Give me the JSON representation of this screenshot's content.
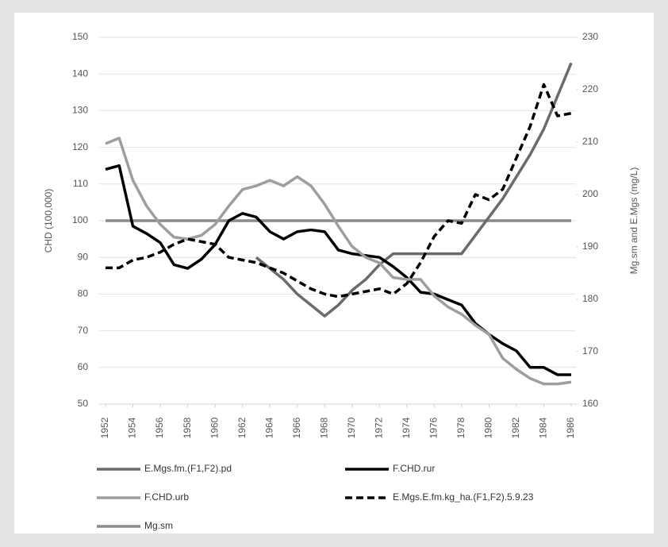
{
  "chart_data": {
    "type": "line",
    "y_label": "CHD (100,000)",
    "y2_label": "Mg.sm and E.Mgs (mg/L)",
    "x": [
      1952,
      1953,
      1954,
      1955,
      1956,
      1957,
      1958,
      1959,
      1960,
      1961,
      1962,
      1963,
      1964,
      1965,
      1966,
      1967,
      1968,
      1969,
      1970,
      1971,
      1972,
      1973,
      1974,
      1975,
      1976,
      1977,
      1978,
      1979,
      1980,
      1981,
      1982,
      1983,
      1984,
      1985,
      1986
    ],
    "xlim": [
      1952,
      1986
    ],
    "xticks": [
      1952,
      1954,
      1956,
      1958,
      1960,
      1962,
      1964,
      1966,
      1968,
      1970,
      1972,
      1974,
      1976,
      1978,
      1980,
      1982,
      1984,
      1986
    ],
    "ylim": [
      50,
      150
    ],
    "yticks": [
      50,
      60,
      70,
      80,
      90,
      100,
      110,
      120,
      130,
      140,
      150
    ],
    "y2lim": [
      160,
      230
    ],
    "y2ticks": [
      160,
      170,
      180,
      190,
      200,
      210,
      220,
      230
    ],
    "grid": true,
    "legend": "bottom",
    "series": [
      {
        "name": "E.Mgs.fm.(F1,F2).pd",
        "color": "#6b6b6b",
        "dashed": false,
        "values": [
          null,
          null,
          null,
          null,
          null,
          null,
          null,
          null,
          null,
          null,
          null,
          90,
          87,
          84,
          80,
          77,
          74,
          77,
          81,
          84,
          88,
          91,
          91,
          91,
          91,
          91,
          91,
          96,
          101,
          106,
          112,
          118,
          125,
          134,
          143
        ]
      },
      {
        "name": "F.CHD.rur",
        "color": "#000000",
        "dashed": false,
        "values": [
          114,
          115,
          98.5,
          96.5,
          94,
          88,
          87,
          89.5,
          93.5,
          100,
          102,
          101,
          97,
          95,
          97,
          97.5,
          97,
          92,
          91,
          90.5,
          90,
          87.5,
          84.5,
          80.5,
          80,
          78.5,
          77,
          72,
          69,
          66.5,
          64.5,
          60,
          60,
          58,
          58
        ]
      },
      {
        "name": "F.CHD.urb",
        "color": "#9e9e9e",
        "dashed": false,
        "values": [
          121,
          122.5,
          111,
          104,
          99,
          95.5,
          95,
          96,
          99,
          104,
          108.5,
          109.5,
          111,
          109.5,
          112,
          109.5,
          104.5,
          98.5,
          93,
          90,
          88.5,
          84.5,
          84,
          84,
          79.5,
          76.5,
          74.5,
          71.5,
          69,
          62.5,
          59.5,
          57,
          55.5,
          55.5,
          56
        ]
      },
      {
        "name": "E.Mgs.E.fm.kg_ha.(F1,F2).5.9.23",
        "color": "#000000",
        "dashed": true,
        "axis": "y2",
        "values": [
          186,
          186,
          187.5,
          188,
          189,
          190.5,
          191.5,
          191,
          190.5,
          188,
          187.5,
          187,
          186,
          185,
          183.5,
          182,
          181,
          180.5,
          181,
          181.5,
          182,
          181,
          183,
          187,
          192,
          195,
          194.5,
          200,
          199,
          201,
          207,
          213,
          221,
          215,
          215.5
        ]
      },
      {
        "name": "Mg.sm",
        "color": "#8a8a8a",
        "dashed": false,
        "values": [
          100,
          100,
          100,
          100,
          100,
          100,
          100,
          100,
          100,
          100,
          100,
          100,
          100,
          100,
          100,
          100,
          100,
          100,
          100,
          100,
          100,
          100,
          100,
          100,
          100,
          100,
          100,
          100,
          100,
          100,
          100,
          100,
          100,
          100,
          100
        ]
      }
    ]
  }
}
